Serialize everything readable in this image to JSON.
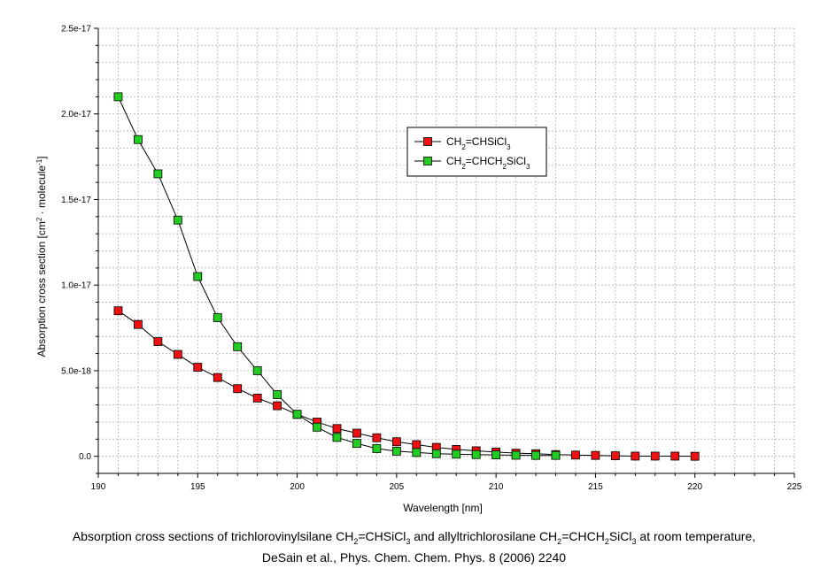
{
  "chart_data": {
    "type": "scatter",
    "xlabel": "Wavelength [nm]",
    "ylabel": {
      "prefix": "Absorption cross section [cm",
      "sup1": "2",
      "middle": " · molecule",
      "sup2": "-1",
      "suffix": "]"
    },
    "xlim": [
      190,
      225
    ],
    "ylim": [
      -1e-18,
      2.5e-17
    ],
    "grid": true,
    "legend_position": "upper-center",
    "x_ticks": [
      {
        "value": 190,
        "label": "190"
      },
      {
        "value": 195,
        "label": "195"
      },
      {
        "value": 200,
        "label": "200"
      },
      {
        "value": 205,
        "label": "205"
      },
      {
        "value": 210,
        "label": "210"
      },
      {
        "value": 215,
        "label": "215"
      },
      {
        "value": 220,
        "label": "220"
      },
      {
        "value": 225,
        "label": "225"
      }
    ],
    "y_ticks": [
      {
        "value": 0,
        "label": "0.0"
      },
      {
        "value": 5e-18,
        "label": "5.0e-18"
      },
      {
        "value": 1e-17,
        "label": "1.0e-17"
      },
      {
        "value": 1.5e-17,
        "label": "1.5e-17"
      },
      {
        "value": 2e-17,
        "label": "2.0e-17"
      },
      {
        "value": 2.5e-17,
        "label": "2.5e-17"
      }
    ],
    "series": [
      {
        "name_parts": [
          {
            "t": "CH"
          },
          {
            "t": "2",
            "sub": true
          },
          {
            "t": "=CHSiCl"
          },
          {
            "t": "3",
            "sub": true
          }
        ],
        "color": "#ee1111",
        "x": [
          191,
          192,
          193,
          194,
          195,
          196,
          197,
          198,
          199,
          200,
          201,
          202,
          203,
          204,
          205,
          206,
          207,
          208,
          209,
          210,
          211,
          212,
          213,
          214,
          215,
          216,
          217,
          218,
          219,
          220
        ],
        "y": [
          8.5e-18,
          7.7e-18,
          6.7e-18,
          5.95e-18,
          5.2e-18,
          4.6e-18,
          3.95e-18,
          3.4e-18,
          2.95e-18,
          2.45e-18,
          2e-18,
          1.62e-18,
          1.35e-18,
          1.08e-18,
          8.5e-19,
          6.8e-19,
          5.2e-19,
          4e-19,
          3.2e-19,
          2.5e-19,
          1.8e-19,
          1.5e-19,
          1e-19,
          7e-20,
          5e-20,
          3e-20,
          1e-20,
          1e-20,
          1e-20,
          0.0
        ]
      },
      {
        "name_parts": [
          {
            "t": "CH"
          },
          {
            "t": "2",
            "sub": true
          },
          {
            "t": "=CHCH"
          },
          {
            "t": "2",
            "sub": true
          },
          {
            "t": "SiCl"
          },
          {
            "t": "3",
            "sub": true
          }
        ],
        "color": "#22cc22",
        "x": [
          191,
          192,
          193,
          194,
          195,
          196,
          197,
          198,
          199,
          200,
          201,
          202,
          203,
          204,
          205,
          206,
          207,
          208,
          209,
          210,
          211,
          212,
          213
        ],
        "y": [
          2.1e-17,
          1.85e-17,
          1.65e-17,
          1.38e-17,
          1.05e-17,
          8.1e-18,
          6.4e-18,
          5e-18,
          3.6e-18,
          2.45e-18,
          1.7e-18,
          1.1e-18,
          7.5e-19,
          4.5e-19,
          3e-19,
          2.2e-19,
          1.5e-19,
          1.2e-19,
          1e-19,
          8e-20,
          6e-20,
          5e-20,
          5e-20
        ]
      }
    ]
  },
  "caption": {
    "line1_parts": [
      {
        "t": "Absorption cross sections of trichlorovinylsilane CH"
      },
      {
        "t": "2",
        "sub": true
      },
      {
        "t": "=CHSiCl"
      },
      {
        "t": "3",
        "sub": true
      },
      {
        "t": " and allyltrichlorosilane CH"
      },
      {
        "t": "2",
        "sub": true
      },
      {
        "t": "=CHCH"
      },
      {
        "t": "2",
        "sub": true
      },
      {
        "t": "SiCl"
      },
      {
        "t": "3",
        "sub": true
      },
      {
        "t": " at room temperature,"
      }
    ],
    "line2": "DeSain et al., Phys. Chem. Chem. Phys. 8 (2006) 2240"
  }
}
